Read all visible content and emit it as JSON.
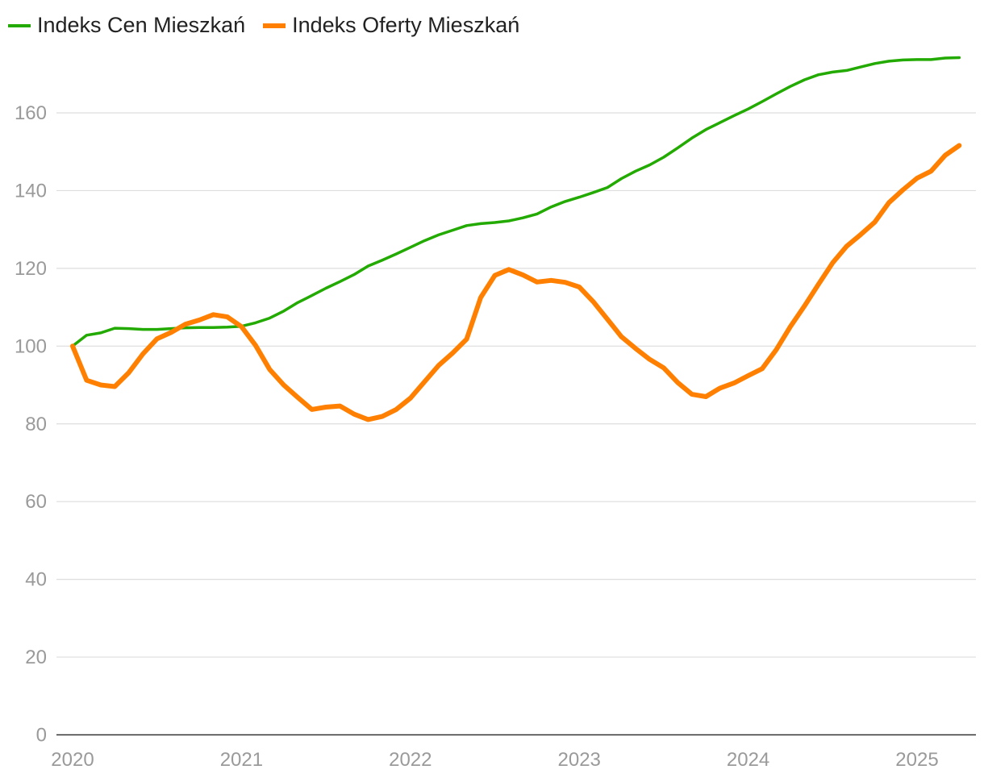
{
  "chart_data": {
    "type": "line",
    "title": "",
    "xlabel": "",
    "ylabel": "",
    "ylim": [
      0,
      175
    ],
    "yticks": [
      0,
      20,
      40,
      60,
      80,
      100,
      120,
      140,
      160
    ],
    "xlim": [
      2020.0,
      2025.583
    ],
    "xticks": [
      2020,
      2021,
      2022,
      2023,
      2024,
      2025
    ],
    "grid": true,
    "legend_position": "top-left",
    "x_start": 2020.0,
    "x_step": 0.08333,
    "series": [
      {
        "name": "Indeks Cen Mieszkań",
        "color": "#22aa00",
        "values": [
          100,
          102.8,
          103.4,
          104.6,
          104.5,
          104.3,
          104.3,
          104.5,
          104.7,
          104.8,
          104.8,
          104.9,
          105.1,
          106.0,
          107.2,
          109.0,
          111.2,
          113.0,
          114.9,
          116.6,
          118.4,
          120.6,
          122.1,
          123.7,
          125.4,
          127.1,
          128.6,
          129.8,
          131.0,
          131.5,
          131.8,
          132.2,
          133.0,
          134.0,
          135.8,
          137.2,
          138.3,
          139.5,
          140.8,
          143.1,
          145.0,
          146.6,
          148.6,
          151.0,
          153.5,
          155.7,
          157.5,
          159.3,
          161.0,
          162.9,
          164.9,
          166.8,
          168.5,
          169.8,
          170.5,
          170.9,
          171.8,
          172.7,
          173.3,
          173.6,
          173.7,
          173.7,
          174.1,
          174.2
        ]
      },
      {
        "name": "Indeks Oferty Mieszkań",
        "color": "#ff8000",
        "values": [
          100,
          91.2,
          90.0,
          89.6,
          93.2,
          98.0,
          101.9,
          103.5,
          105.6,
          106.7,
          108.1,
          107.5,
          105.0,
          100.2,
          94.0,
          90.0,
          86.8,
          83.7,
          84.3,
          84.6,
          82.5,
          81.1,
          81.9,
          83.7,
          86.6,
          90.8,
          95.0,
          98.2,
          101.8,
          112.5,
          118.2,
          119.7,
          118.3,
          116.5,
          116.9,
          116.4,
          115.2,
          111.4,
          106.9,
          102.4,
          99.4,
          96.6,
          94.4,
          90.6,
          87.6,
          87.0,
          89.2,
          90.5,
          92.4,
          94.2,
          99.1,
          105.0,
          110.3,
          115.9,
          121.4,
          125.7,
          128.7,
          131.9,
          136.9,
          140.2,
          143.2,
          145.0,
          149.1,
          151.6
        ]
      }
    ]
  }
}
